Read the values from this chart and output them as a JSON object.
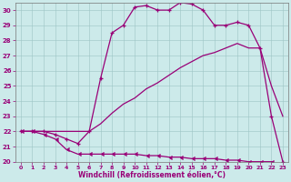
{
  "xlabel": "Windchill (Refroidissement éolien,°C)",
  "xlim": [
    -0.5,
    23.5
  ],
  "ylim": [
    20,
    30.5
  ],
  "yticks": [
    20,
    21,
    22,
    23,
    24,
    25,
    26,
    27,
    28,
    29,
    30
  ],
  "xticks": [
    0,
    1,
    2,
    3,
    4,
    5,
    6,
    7,
    8,
    9,
    10,
    11,
    12,
    13,
    14,
    15,
    16,
    17,
    18,
    19,
    20,
    21,
    22,
    23
  ],
  "bg_color": "#cceaea",
  "line_color": "#990077",
  "curve1_x": [
    0,
    1,
    2,
    3,
    4,
    5,
    6,
    7,
    8,
    9,
    10,
    11,
    12,
    13,
    14,
    15,
    16,
    17,
    18,
    19,
    20,
    21,
    22,
    23
  ],
  "curve1_y": [
    22,
    22,
    22,
    21.8,
    21.5,
    21.2,
    22,
    25.5,
    28.5,
    29,
    30.2,
    30.3,
    30.0,
    30.0,
    30.5,
    30.4,
    30.0,
    29.0,
    29.0,
    29.2,
    29.0,
    27.5,
    23.0,
    20.0
  ],
  "curve2_x": [
    0,
    1,
    2,
    3,
    4,
    5,
    6,
    7,
    8,
    9,
    10,
    11,
    12,
    13,
    14,
    15,
    16,
    17,
    18,
    19,
    20,
    21,
    22,
    23
  ],
  "curve2_y": [
    22,
    22,
    21.8,
    21.5,
    20.8,
    20.5,
    20.5,
    20.5,
    20.5,
    20.5,
    20.5,
    20.4,
    20.4,
    20.3,
    20.3,
    20.2,
    20.2,
    20.2,
    20.1,
    20.1,
    20.0,
    20.0,
    20.0,
    19.8
  ],
  "curve3_x": [
    0,
    1,
    2,
    3,
    4,
    5,
    6,
    7,
    8,
    9,
    10,
    11,
    12,
    13,
    14,
    15,
    16,
    17,
    18,
    19,
    20,
    21,
    22,
    23
  ],
  "curve3_y": [
    22,
    22,
    22,
    22,
    22,
    22,
    22,
    22.5,
    23.2,
    23.8,
    24.2,
    24.8,
    25.2,
    25.7,
    26.2,
    26.6,
    27.0,
    27.2,
    27.5,
    27.8,
    27.5,
    27.5,
    25.0,
    23.0
  ]
}
